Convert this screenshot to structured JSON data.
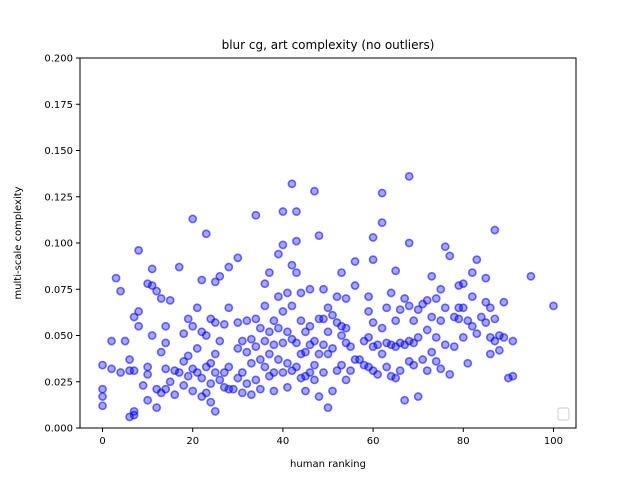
{
  "chart_data": {
    "type": "scatter",
    "title": "blur cg, art complexity (no outliers)",
    "xlabel": "human ranking",
    "ylabel": "multi-scale complexity",
    "xlim": [
      -5,
      105
    ],
    "ylim": [
      0.0,
      0.2
    ],
    "xticks": [
      0,
      20,
      40,
      60,
      80,
      100
    ],
    "yticks": [
      0.0,
      0.025,
      0.05,
      0.075,
      0.1,
      0.125,
      0.15,
      0.175,
      0.2
    ],
    "xtick_labels": [
      "0",
      "20",
      "40",
      "60",
      "80",
      "100"
    ],
    "ytick_labels": [
      "0.000",
      "0.025",
      "0.050",
      "0.075",
      "0.100",
      "0.125",
      "0.150",
      "0.175",
      "0.200"
    ],
    "grid": false,
    "legend": "bottom-right (empty)",
    "marker_color": "#0000ff",
    "series": [
      {
        "points": [
          [
            0,
            0.034
          ],
          [
            0,
            0.021
          ],
          [
            0,
            0.017
          ],
          [
            0,
            0.012
          ],
          [
            2,
            0.047
          ],
          [
            2,
            0.032
          ],
          [
            3,
            0.081
          ],
          [
            4,
            0.074
          ],
          [
            4,
            0.03
          ],
          [
            5,
            0.047
          ],
          [
            6,
            0.037
          ],
          [
            6,
            0.031
          ],
          [
            6,
            0.006
          ],
          [
            7,
            0.007
          ],
          [
            7,
            0.009
          ],
          [
            7,
            0.06
          ],
          [
            7,
            0.031
          ],
          [
            8,
            0.096
          ],
          [
            8,
            0.063
          ],
          [
            8,
            0.055
          ],
          [
            9,
            0.023
          ],
          [
            10,
            0.078
          ],
          [
            10,
            0.033
          ],
          [
            10,
            0.029
          ],
          [
            10,
            0.015
          ],
          [
            11,
            0.086
          ],
          [
            11,
            0.077
          ],
          [
            11,
            0.05
          ],
          [
            12,
            0.074
          ],
          [
            12,
            0.021
          ],
          [
            12,
            0.011
          ],
          [
            13,
            0.07
          ],
          [
            13,
            0.041
          ],
          [
            13,
            0.019
          ],
          [
            14,
            0.055
          ],
          [
            14,
            0.046
          ],
          [
            14,
            0.032
          ],
          [
            14,
            0.021
          ],
          [
            15,
            0.069
          ],
          [
            15,
            0.025
          ],
          [
            16,
            0.031
          ],
          [
            16,
            0.018
          ],
          [
            17,
            0.087
          ],
          [
            17,
            0.03
          ],
          [
            18,
            0.051
          ],
          [
            18,
            0.036
          ],
          [
            18,
            0.023
          ],
          [
            19,
            0.059
          ],
          [
            19,
            0.039
          ],
          [
            19,
            0.028
          ],
          [
            20,
            0.113
          ],
          [
            20,
            0.055
          ],
          [
            20,
            0.032
          ],
          [
            20,
            0.02
          ],
          [
            21,
            0.065
          ],
          [
            21,
            0.043
          ],
          [
            21,
            0.03
          ],
          [
            22,
            0.08
          ],
          [
            22,
            0.052
          ],
          [
            22,
            0.027
          ],
          [
            22,
            0.017
          ],
          [
            23,
            0.105
          ],
          [
            23,
            0.05
          ],
          [
            23,
            0.033
          ],
          [
            23,
            0.019
          ],
          [
            24,
            0.059
          ],
          [
            24,
            0.035
          ],
          [
            24,
            0.024
          ],
          [
            24,
            0.014
          ],
          [
            25,
            0.079
          ],
          [
            25,
            0.057
          ],
          [
            25,
            0.04
          ],
          [
            25,
            0.03
          ],
          [
            25,
            0.009
          ],
          [
            26,
            0.082
          ],
          [
            26,
            0.047
          ],
          [
            26,
            0.026
          ],
          [
            27,
            0.056
          ],
          [
            27,
            0.03
          ],
          [
            27,
            0.022
          ],
          [
            28,
            0.087
          ],
          [
            28,
            0.065
          ],
          [
            28,
            0.033
          ],
          [
            28,
            0.021
          ],
          [
            29,
            0.021
          ],
          [
            30,
            0.092
          ],
          [
            30,
            0.057
          ],
          [
            30,
            0.043
          ],
          [
            30,
            0.027
          ],
          [
            31,
            0.047
          ],
          [
            31,
            0.03
          ],
          [
            31,
            0.019
          ],
          [
            32,
            0.058
          ],
          [
            32,
            0.041
          ],
          [
            32,
            0.024
          ],
          [
            33,
            0.048
          ],
          [
            33,
            0.035
          ],
          [
            33,
            0.018
          ],
          [
            34,
            0.115
          ],
          [
            34,
            0.059
          ],
          [
            34,
            0.044
          ],
          [
            34,
            0.026
          ],
          [
            35,
            0.054
          ],
          [
            35,
            0.037
          ],
          [
            35,
            0.021
          ],
          [
            36,
            0.078
          ],
          [
            36,
            0.066
          ],
          [
            36,
            0.047
          ],
          [
            36,
            0.033
          ],
          [
            37,
            0.084
          ],
          [
            37,
            0.052
          ],
          [
            37,
            0.04
          ],
          [
            37,
            0.028
          ],
          [
            38,
            0.058
          ],
          [
            38,
            0.045
          ],
          [
            38,
            0.03
          ],
          [
            38,
            0.02
          ],
          [
            39,
            0.094
          ],
          [
            39,
            0.071
          ],
          [
            39,
            0.054
          ],
          [
            39,
            0.037
          ],
          [
            40,
            0.117
          ],
          [
            40,
            0.099
          ],
          [
            40,
            0.063
          ],
          [
            40,
            0.046
          ],
          [
            40,
            0.03
          ],
          [
            41,
            0.073
          ],
          [
            41,
            0.052
          ],
          [
            41,
            0.035
          ],
          [
            41,
            0.022
          ],
          [
            42,
            0.132
          ],
          [
            42,
            0.088
          ],
          [
            42,
            0.066
          ],
          [
            42,
            0.048
          ],
          [
            42,
            0.031
          ],
          [
            43,
            0.117
          ],
          [
            43,
            0.101
          ],
          [
            43,
            0.084
          ],
          [
            43,
            0.046
          ],
          [
            43,
            0.033
          ],
          [
            44,
            0.073
          ],
          [
            44,
            0.058
          ],
          [
            44,
            0.04
          ],
          [
            44,
            0.027
          ],
          [
            45,
            0.052
          ],
          [
            45,
            0.041
          ],
          [
            45,
            0.028
          ],
          [
            45,
            0.02
          ],
          [
            46,
            0.075
          ],
          [
            46,
            0.055
          ],
          [
            46,
            0.045
          ],
          [
            46,
            0.03
          ],
          [
            47,
            0.128
          ],
          [
            47,
            0.047
          ],
          [
            47,
            0.034
          ],
          [
            47,
            0.026
          ],
          [
            48,
            0.104
          ],
          [
            48,
            0.059
          ],
          [
            48,
            0.04
          ],
          [
            48,
            0.017
          ],
          [
            49,
            0.075
          ],
          [
            49,
            0.059
          ],
          [
            49,
            0.045
          ],
          [
            49,
            0.03
          ],
          [
            50,
            0.065
          ],
          [
            50,
            0.052
          ],
          [
            50,
            0.04
          ],
          [
            50,
            0.011
          ],
          [
            51,
            0.061
          ],
          [
            51,
            0.043
          ],
          [
            51,
            0.02
          ],
          [
            52,
            0.071
          ],
          [
            52,
            0.057
          ],
          [
            52,
            0.031
          ],
          [
            53,
            0.084
          ],
          [
            53,
            0.055
          ],
          [
            53,
            0.05
          ],
          [
            53,
            0.034
          ],
          [
            54,
            0.07
          ],
          [
            54,
            0.054
          ],
          [
            54,
            0.046
          ],
          [
            54,
            0.026
          ],
          [
            55,
            0.044
          ],
          [
            55,
            0.031
          ],
          [
            56,
            0.09
          ],
          [
            56,
            0.077
          ],
          [
            56,
            0.037
          ],
          [
            57,
            0.037
          ],
          [
            58,
            0.047
          ],
          [
            58,
            0.034
          ],
          [
            59,
            0.071
          ],
          [
            59,
            0.063
          ],
          [
            59,
            0.049
          ],
          [
            59,
            0.033
          ],
          [
            60,
            0.103
          ],
          [
            60,
            0.091
          ],
          [
            60,
            0.057
          ],
          [
            60,
            0.044
          ],
          [
            60,
            0.031
          ],
          [
            61,
            0.045
          ],
          [
            61,
            0.029
          ],
          [
            62,
            0.127
          ],
          [
            62,
            0.111
          ],
          [
            62,
            0.054
          ],
          [
            62,
            0.04
          ],
          [
            63,
            0.065
          ],
          [
            63,
            0.046
          ],
          [
            63,
            0.033
          ],
          [
            64,
            0.073
          ],
          [
            64,
            0.045
          ],
          [
            64,
            0.028
          ],
          [
            65,
            0.085
          ],
          [
            65,
            0.058
          ],
          [
            65,
            0.044
          ],
          [
            65,
            0.027
          ],
          [
            66,
            0.064
          ],
          [
            66,
            0.046
          ],
          [
            66,
            0.031
          ],
          [
            67,
            0.07
          ],
          [
            67,
            0.045
          ],
          [
            67,
            0.015
          ],
          [
            68,
            0.136
          ],
          [
            68,
            0.1
          ],
          [
            68,
            0.066
          ],
          [
            68,
            0.047
          ],
          [
            68,
            0.036
          ],
          [
            69,
            0.058
          ],
          [
            69,
            0.046
          ],
          [
            69,
            0.034
          ],
          [
            70,
            0.064
          ],
          [
            70,
            0.049
          ],
          [
            70,
            0.017
          ],
          [
            71,
            0.067
          ],
          [
            71,
            0.037
          ],
          [
            72,
            0.069
          ],
          [
            72,
            0.053
          ],
          [
            72,
            0.031
          ],
          [
            73,
            0.082
          ],
          [
            73,
            0.06
          ],
          [
            73,
            0.041
          ],
          [
            74,
            0.07
          ],
          [
            74,
            0.049
          ],
          [
            74,
            0.036
          ],
          [
            75,
            0.075
          ],
          [
            75,
            0.058
          ],
          [
            75,
            0.032
          ],
          [
            76,
            0.098
          ],
          [
            76,
            0.065
          ],
          [
            76,
            0.045
          ],
          [
            77,
            0.093
          ],
          [
            77,
            0.029
          ],
          [
            78,
            0.06
          ],
          [
            78,
            0.044
          ],
          [
            79,
            0.077
          ],
          [
            79,
            0.065
          ],
          [
            79,
            0.059
          ],
          [
            80,
            0.078
          ],
          [
            80,
            0.065
          ],
          [
            80,
            0.049
          ],
          [
            81,
            0.058
          ],
          [
            81,
            0.035
          ],
          [
            82,
            0.084
          ],
          [
            82,
            0.071
          ],
          [
            82,
            0.055
          ],
          [
            83,
            0.091
          ],
          [
            83,
            0.051
          ],
          [
            84,
            0.06
          ],
          [
            85,
            0.081
          ],
          [
            85,
            0.068
          ],
          [
            85,
            0.057
          ],
          [
            86,
            0.065
          ],
          [
            86,
            0.049
          ],
          [
            86,
            0.04
          ],
          [
            87,
            0.107
          ],
          [
            87,
            0.059
          ],
          [
            87,
            0.047
          ],
          [
            88,
            0.042
          ],
          [
            88,
            0.05
          ],
          [
            89,
            0.068
          ],
          [
            89,
            0.049
          ],
          [
            90,
            0.027
          ],
          [
            91,
            0.047
          ],
          [
            91,
            0.028
          ],
          [
            95,
            0.082
          ],
          [
            100,
            0.066
          ]
        ]
      }
    ]
  }
}
